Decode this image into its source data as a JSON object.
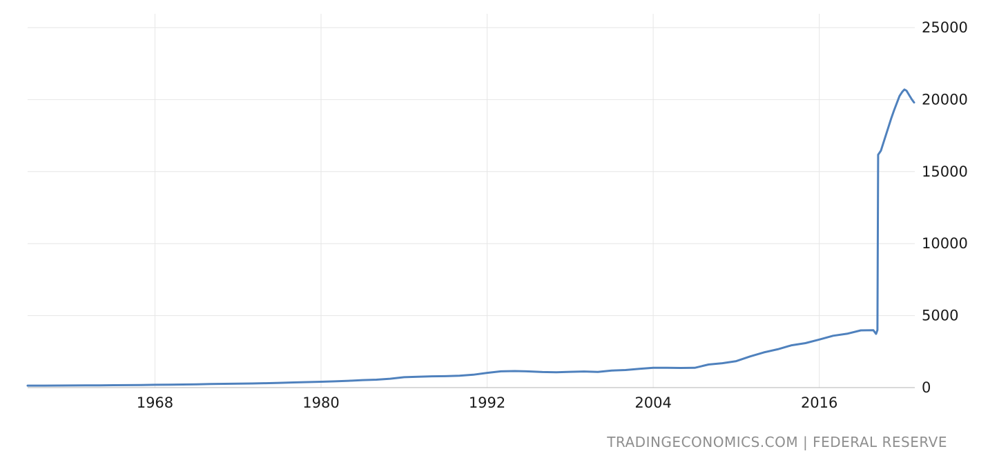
{
  "attribution": "TRADINGECONOMICS.COM | FEDERAL RESERVE",
  "colors": {
    "background": "#ffffff",
    "line": "#4f81bd",
    "grid": "#e6e6e6",
    "axis": "#b3b3b3",
    "tick_label": "#1a1a1a",
    "attribution": "#8e8e8e"
  },
  "chart_data": {
    "type": "line",
    "title": "",
    "xlabel": "",
    "ylabel": "",
    "legend": "none",
    "grid": true,
    "x_ticks": [
      1968,
      1980,
      1992,
      2004,
      2016
    ],
    "y_ticks": [
      0,
      5000,
      10000,
      15000,
      20000,
      25000
    ],
    "x_domain": [
      1958.8,
      2022.9
    ],
    "ylim": [
      0,
      25000
    ],
    "series": [
      {
        "name": "",
        "points": [
          [
            1958.8,
            139
          ],
          [
            1960,
            140
          ],
          [
            1961,
            145
          ],
          [
            1962,
            147
          ],
          [
            1963,
            153
          ],
          [
            1964,
            160
          ],
          [
            1965,
            167
          ],
          [
            1966,
            172
          ],
          [
            1967,
            183
          ],
          [
            1968,
            197
          ],
          [
            1969,
            204
          ],
          [
            1970,
            214
          ],
          [
            1971,
            228
          ],
          [
            1972,
            249
          ],
          [
            1973,
            263
          ],
          [
            1974,
            274
          ],
          [
            1975,
            287
          ],
          [
            1976,
            306
          ],
          [
            1977,
            331
          ],
          [
            1978,
            358
          ],
          [
            1979,
            382
          ],
          [
            1980,
            408
          ],
          [
            1981,
            436
          ],
          [
            1982,
            474
          ],
          [
            1983,
            521
          ],
          [
            1984,
            552
          ],
          [
            1985,
            620
          ],
          [
            1986,
            724
          ],
          [
            1987,
            750
          ],
          [
            1988,
            787
          ],
          [
            1989,
            794
          ],
          [
            1990,
            825
          ],
          [
            1991,
            897
          ],
          [
            1992,
            1024
          ],
          [
            1993,
            1130
          ],
          [
            1994,
            1150
          ],
          [
            1995,
            1127
          ],
          [
            1996,
            1081
          ],
          [
            1997,
            1070
          ],
          [
            1998,
            1095
          ],
          [
            1999,
            1122
          ],
          [
            2000,
            1088
          ],
          [
            2001,
            1182
          ],
          [
            2002,
            1220
          ],
          [
            2003,
            1306
          ],
          [
            2004,
            1376
          ],
          [
            2005,
            1375
          ],
          [
            2006,
            1367
          ],
          [
            2007,
            1373
          ],
          [
            2008,
            1604
          ],
          [
            2009,
            1694
          ],
          [
            2010,
            1837
          ],
          [
            2011,
            2164
          ],
          [
            2012,
            2445
          ],
          [
            2013,
            2661
          ],
          [
            2014,
            2940
          ],
          [
            2015,
            3089
          ],
          [
            2016,
            3339
          ],
          [
            2017,
            3601
          ],
          [
            2018,
            3742
          ],
          [
            2019,
            3977
          ],
          [
            2019.9,
            3990
          ],
          [
            2020.1,
            3730
          ],
          [
            2020.2,
            4000
          ],
          [
            2020.25,
            16170
          ],
          [
            2020.45,
            16450
          ],
          [
            2020.6,
            16900
          ],
          [
            2020.8,
            17500
          ],
          [
            2021.0,
            18100
          ],
          [
            2021.2,
            18700
          ],
          [
            2021.4,
            19250
          ],
          [
            2021.6,
            19750
          ],
          [
            2021.8,
            20250
          ],
          [
            2022.0,
            20550
          ],
          [
            2022.15,
            20700
          ],
          [
            2022.3,
            20620
          ],
          [
            2022.5,
            20300
          ],
          [
            2022.7,
            19990
          ],
          [
            2022.85,
            19800
          ]
        ]
      }
    ]
  }
}
